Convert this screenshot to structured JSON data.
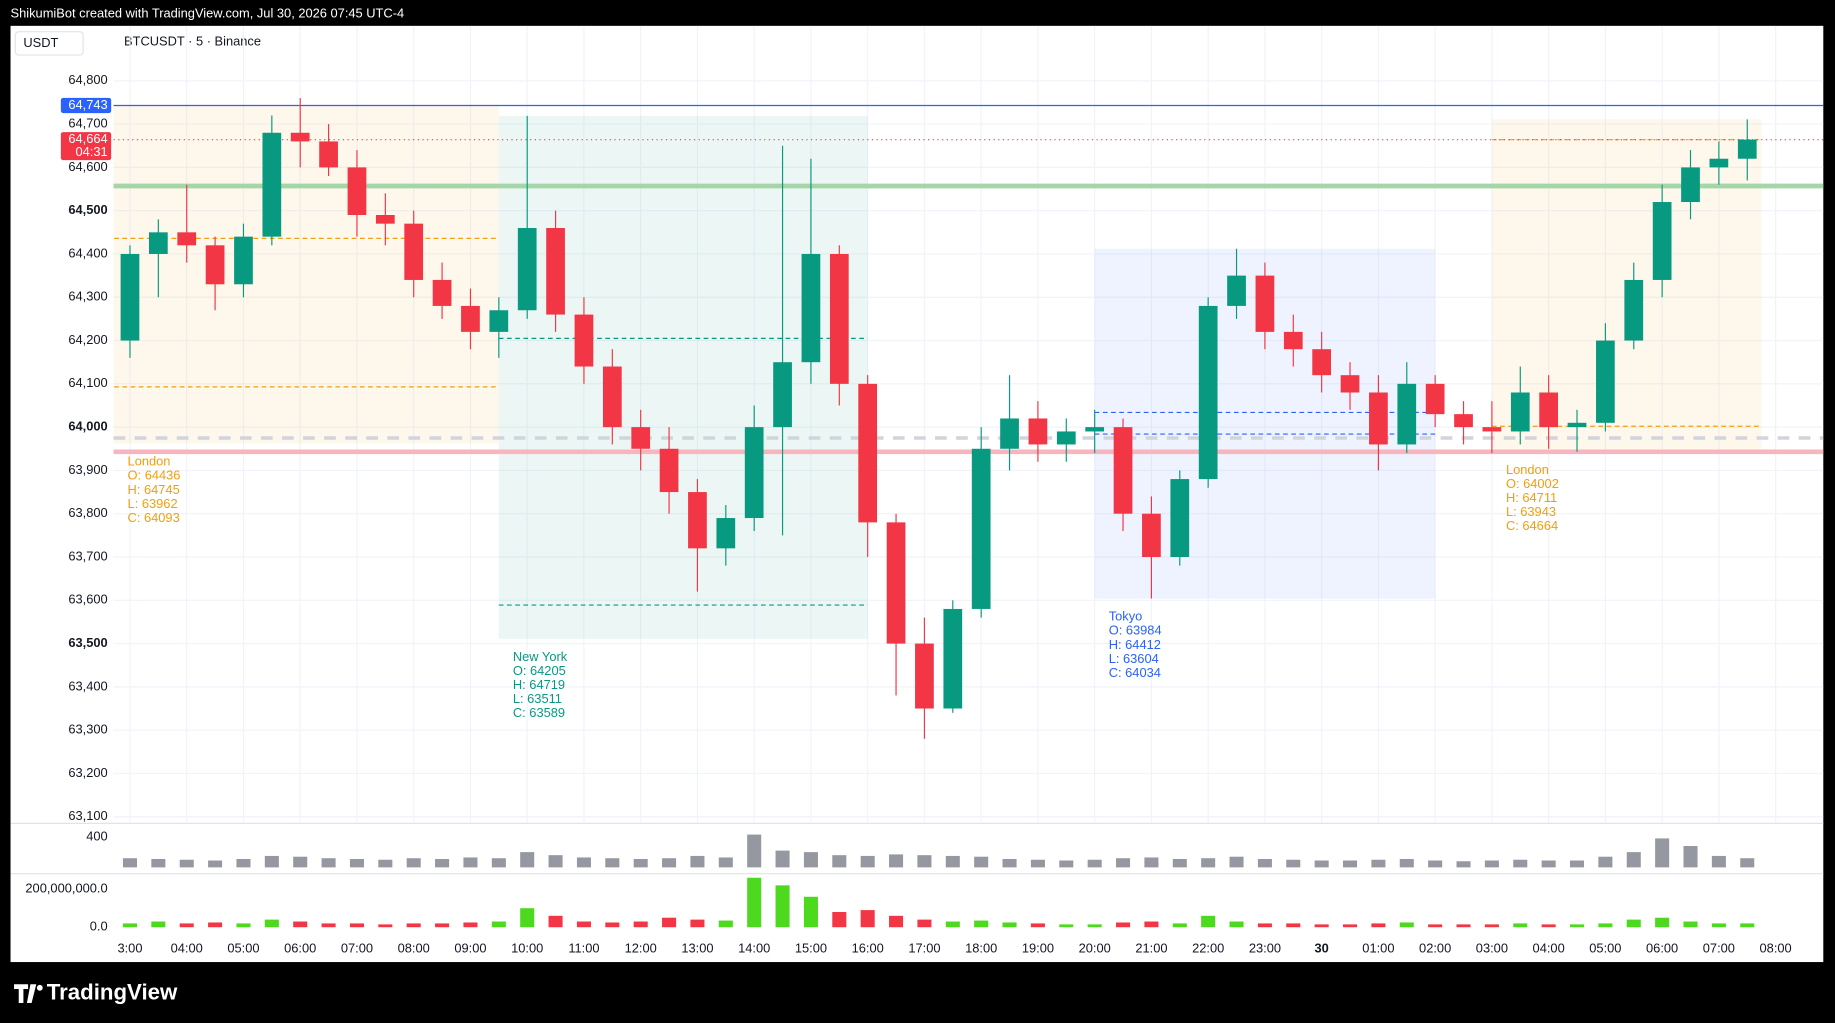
{
  "header": "ShikumiBot created with TradingView.com, Jul 30, 2026 07:45 UTC-4",
  "brand": "TradingView",
  "chart_data": [
    {
      "type": "candlestick",
      "currency": "USDT",
      "title": "BTCUSDT · 5 · Binance",
      "color_up": "#089981",
      "color_down": "#f23645",
      "grid": true,
      "xlim": [
        2.71,
        32.84
      ],
      "xticks": [
        {
          "value": 3,
          "label": "3:00"
        },
        {
          "value": 4,
          "label": "04:00"
        },
        {
          "value": 5,
          "label": "05:00"
        },
        {
          "value": 6,
          "label": "06:00"
        },
        {
          "value": 7,
          "label": "07:00"
        },
        {
          "value": 8,
          "label": "08:00"
        },
        {
          "value": 9,
          "label": "09:00"
        },
        {
          "value": 10,
          "label": "10:00"
        },
        {
          "value": 11,
          "label": "11:00"
        },
        {
          "value": 12,
          "label": "12:00"
        },
        {
          "value": 13,
          "label": "13:00"
        },
        {
          "value": 14,
          "label": "14:00"
        },
        {
          "value": 15,
          "label": "15:00"
        },
        {
          "value": 16,
          "label": "16:00"
        },
        {
          "value": 17,
          "label": "17:00"
        },
        {
          "value": 18,
          "label": "18:00"
        },
        {
          "value": 19,
          "label": "19:00"
        },
        {
          "value": 20,
          "label": "20:00"
        },
        {
          "value": 21,
          "label": "21:00"
        },
        {
          "value": 22,
          "label": "22:00"
        },
        {
          "value": 23,
          "label": "23:00"
        },
        {
          "value": 24,
          "label": "30"
        },
        {
          "value": 25,
          "label": "01:00"
        },
        {
          "value": 26,
          "label": "02:00"
        },
        {
          "value": 27,
          "label": "03:00"
        },
        {
          "value": 28,
          "label": "04:00"
        },
        {
          "value": 29,
          "label": "05:00"
        },
        {
          "value": 30,
          "label": "06:00"
        },
        {
          "value": 31,
          "label": "07:00"
        },
        {
          "value": 32,
          "label": "08:00"
        }
      ],
      "ylim": [
        63086,
        64927
      ],
      "yticks": [
        {
          "value": 63100,
          "label": "63,100"
        },
        {
          "value": 63200,
          "label": "63,200"
        },
        {
          "value": 63300,
          "label": "63,300"
        },
        {
          "value": 63400,
          "label": "63,400"
        },
        {
          "value": 63500,
          "label": "63,500"
        },
        {
          "value": 63600,
          "label": "63,600"
        },
        {
          "value": 63700,
          "label": "63,700"
        },
        {
          "value": 63800,
          "label": "63,800"
        },
        {
          "value": 63900,
          "label": "63,900"
        },
        {
          "value": 64000,
          "label": "64,000"
        },
        {
          "value": 64100,
          "label": "64,100"
        },
        {
          "value": 64200,
          "label": "64,200"
        },
        {
          "value": 64300,
          "label": "64,300"
        },
        {
          "value": 64400,
          "label": "64,400"
        },
        {
          "value": 64500,
          "label": "64,500"
        },
        {
          "value": 64600,
          "label": "64,600"
        },
        {
          "value": 64700,
          "label": "64,700"
        },
        {
          "value": 64800,
          "label": "64,800"
        }
      ],
      "x": [
        3,
        3.5,
        4,
        4.5,
        5,
        5.5,
        6,
        6.5,
        7,
        7.5,
        8,
        8.5,
        9,
        9.5,
        10,
        10.5,
        11,
        11.5,
        12,
        12.5,
        13,
        13.5,
        14,
        14.5,
        15,
        15.5,
        16,
        16.5,
        17,
        17.5,
        18,
        18.5,
        19,
        19.5,
        20,
        20.5,
        21,
        21.5,
        22,
        22.5,
        23,
        23.5,
        24,
        24.5,
        25,
        25.5,
        26,
        26.5,
        27,
        27.5,
        28,
        28.5,
        29,
        29.5,
        30,
        30.5,
        31,
        31.5
      ],
      "open": [
        64200,
        64400,
        64450,
        64420,
        64330,
        64440,
        64680,
        64660,
        64600,
        64490,
        64470,
        64340,
        64280,
        64220,
        64270,
        64460,
        64260,
        64140,
        64000,
        63950,
        63850,
        63720,
        63790,
        64000,
        64150,
        64400,
        64100,
        63780,
        63500,
        63350,
        63580,
        63950,
        64020,
        63960,
        63990,
        64000,
        63800,
        63700,
        63880,
        64280,
        64350,
        64220,
        64180,
        64120,
        64080,
        63960,
        64100,
        64030,
        64000,
        63990,
        64080,
        64000,
        64010,
        64200,
        64340,
        64520,
        64600,
        64620
      ],
      "high": [
        64420,
        64480,
        64560,
        64440,
        64470,
        64720,
        64760,
        64700,
        64640,
        64540,
        64500,
        64380,
        64320,
        64300,
        64719,
        64500,
        64300,
        64180,
        64040,
        64000,
        63880,
        63820,
        64050,
        64650,
        64620,
        64420,
        64120,
        63800,
        63560,
        63600,
        64000,
        64120,
        64060,
        64020,
        64040,
        64020,
        63840,
        63900,
        64300,
        64412,
        64380,
        64260,
        64220,
        64150,
        64120,
        64150,
        64120,
        64060,
        64060,
        64140,
        64120,
        64040,
        64240,
        64380,
        64560,
        64640,
        64660,
        64711
      ],
      "low": [
        64160,
        64300,
        64380,
        64270,
        64300,
        64420,
        64600,
        64580,
        64440,
        64420,
        64300,
        64250,
        64180,
        64160,
        64250,
        64220,
        64100,
        63960,
        63900,
        63800,
        63620,
        63680,
        63760,
        63750,
        64100,
        64050,
        63700,
        63380,
        63280,
        63340,
        63560,
        63900,
        63920,
        63920,
        63940,
        63760,
        63604,
        63680,
        63860,
        64250,
        64180,
        64140,
        64080,
        64040,
        63900,
        63940,
        64000,
        63960,
        63940,
        63960,
        63950,
        63943,
        63990,
        64180,
        64300,
        64480,
        64560,
        64570
      ],
      "close": [
        64400,
        64450,
        64420,
        64330,
        64440,
        64680,
        64660,
        64600,
        64490,
        64470,
        64340,
        64280,
        64220,
        64270,
        64460,
        64260,
        64140,
        64000,
        63950,
        63850,
        63720,
        63790,
        64000,
        64150,
        64400,
        64100,
        63780,
        63500,
        63350,
        63580,
        63950,
        64020,
        63960,
        63990,
        64000,
        63800,
        63700,
        63880,
        64280,
        64350,
        64220,
        64180,
        64120,
        64080,
        63960,
        64100,
        64030,
        64000,
        63990,
        64080,
        64000,
        64010,
        64200,
        64340,
        64520,
        64600,
        64620,
        64664
      ],
      "levels": [
        {
          "value": 64743,
          "color": "#2962ff",
          "style": "solid"
        },
        {
          "value": 64664,
          "color": "#f23645",
          "style": "dotted"
        },
        {
          "value": 64557,
          "color": "#a5d6a7",
          "style": "thick"
        },
        {
          "value": 63975,
          "color": "#d1d4dc",
          "style": "dashed"
        },
        {
          "value": 63943,
          "color": "#f7b6be",
          "style": "thick"
        }
      ],
      "price_tags": [
        {
          "value": 64743,
          "label": "64,743",
          "color": "#2962ff"
        },
        {
          "value": 64664,
          "label": "64,664",
          "countdown": "04:31",
          "color": "#f23645"
        }
      ],
      "sessions": [
        {
          "name": "London",
          "start": 2,
          "end": 9.5,
          "color": "#f59e0b",
          "open": 64436,
          "high": 64745,
          "low": 63962,
          "close": 64093,
          "lines": [
            "O: 64436",
            "H: 64745",
            "L: 63962",
            "C: 64093"
          ]
        },
        {
          "name": "New York",
          "start": 9.5,
          "end": 16,
          "color": "#089981",
          "open": 64205,
          "high": 64719,
          "low": 63511,
          "close": 63589,
          "lines": [
            "O: 64205",
            "H: 64719",
            "L: 63511",
            "C: 63589"
          ]
        },
        {
          "name": "Tokyo",
          "start": 20,
          "end": 26,
          "color": "#2962ff",
          "open": 63984,
          "high": 64412,
          "low": 63604,
          "close": 64034,
          "lines": [
            "O: 63984",
            "H: 64412",
            "L: 63604",
            "C: 64034"
          ]
        },
        {
          "name": "London",
          "start": 27,
          "end": 31.75,
          "color": "#f59e0b",
          "open": 64002,
          "high": 64711,
          "low": 63943,
          "close": 64664,
          "lines": [
            "O: 64002",
            "H: 64711",
            "L: 63943",
            "C: 64664"
          ]
        }
      ]
    },
    {
      "type": "bar",
      "color": "#9598a1",
      "ylim": [
        -60,
        554
      ],
      "yticks": [
        400
      ],
      "values": [
        120,
        110,
        100,
        90,
        110,
        150,
        140,
        120,
        110,
        100,
        120,
        110,
        130,
        120,
        200,
        160,
        130,
        120,
        110,
        120,
        150,
        130,
        430,
        220,
        200,
        160,
        150,
        170,
        160,
        150,
        140,
        110,
        100,
        90,
        100,
        120,
        130,
        110,
        120,
        140,
        110,
        100,
        90,
        90,
        100,
        110,
        90,
        80,
        90,
        100,
        90,
        90,
        140,
        200,
        380,
        280,
        150,
        120
      ]
    },
    {
      "type": "bar",
      "color_up": "#4cd91e",
      "color_down": "#f23645",
      "ylim": [
        -60000000,
        272000000
      ],
      "yticks": [
        {
          "value": 200000000,
          "label": "200,000,000.0"
        },
        {
          "value": 0,
          "label": "0.0"
        }
      ],
      "values": [
        20000000,
        30000000,
        20000000,
        25000000,
        20000000,
        40000000,
        30000000,
        20000000,
        20000000,
        15000000,
        20000000,
        20000000,
        25000000,
        30000000,
        100000000,
        60000000,
        30000000,
        25000000,
        30000000,
        50000000,
        40000000,
        35000000,
        260000000,
        220000000,
        160000000,
        80000000,
        90000000,
        60000000,
        40000000,
        30000000,
        35000000,
        25000000,
        20000000,
        15000000,
        15000000,
        25000000,
        30000000,
        20000000,
        60000000,
        30000000,
        20000000,
        20000000,
        15000000,
        15000000,
        20000000,
        25000000,
        15000000,
        15000000,
        15000000,
        20000000,
        15000000,
        15000000,
        20000000,
        40000000,
        50000000,
        30000000,
        20000000,
        20000000
      ]
    }
  ]
}
